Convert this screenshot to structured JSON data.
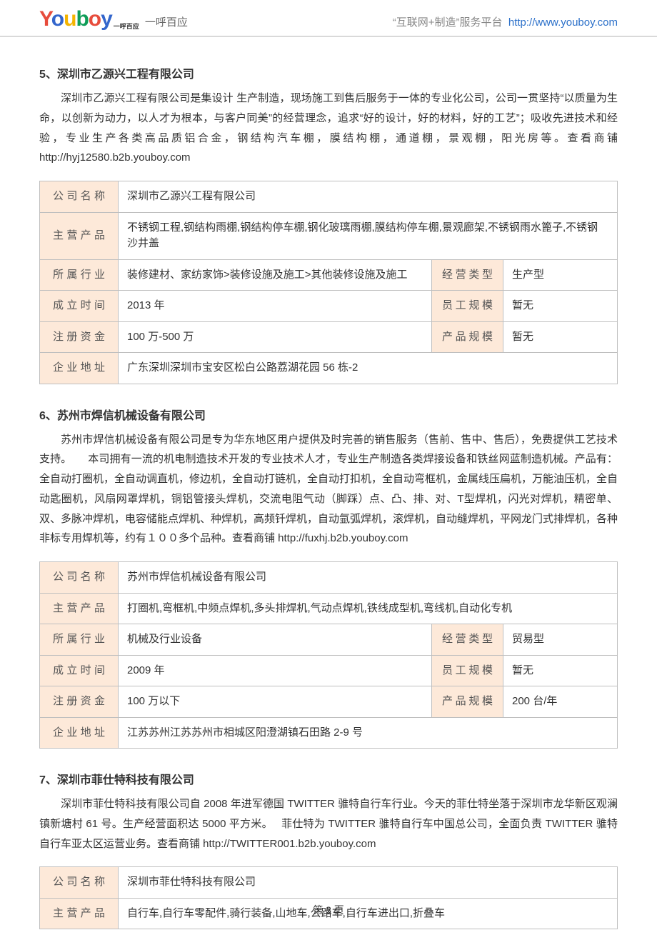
{
  "header": {
    "logo_sup": "一呼百应",
    "logo_sub": "一呼百应",
    "tagline": "“互联网+制造”服务平台",
    "url": "http://www.youboy.com"
  },
  "sections": [
    {
      "title": "5、深圳市乙源兴工程有限公司",
      "desc": "深圳市乙源兴工程有限公司是集设计 生产制造，现场施工到售后服务于一体的专业化公司，公司一贯坚持“以质量为生命，以创新为动力，以人才为根本，与客户同美”的经营理念，追求“好的设计，好的材料，好的工艺”；吸收先进技术和经验，专业生产各类高品质铝合金，钢结构汽车棚，膜结构棚，通道棚，景观棚，阳光房等。查看商铺  http://hyj12580.b2b.youboy.com",
      "table": {
        "company_name": "深圳市乙源兴工程有限公司",
        "main_products": "不锈钢工程,钢结构雨棚,钢结构停车棚,钢化玻璃雨棚,膜结构停车棚,景观廊架,不锈钢雨水篦子,不锈钢沙井盖",
        "industry": "装修建材、家纺家饰>装修设施及施工>其他装修设施及施工",
        "biz_type": "生产型",
        "founded": "2013 年",
        "staff": "暂无",
        "capital": "100 万-500 万",
        "product_scale": "暂无",
        "address": "广东深圳深圳市宝安区松白公路荔湖花园 56 栋-2"
      }
    },
    {
      "title": "6、苏州市焊信机械设备有限公司",
      "desc": "苏州市焊信机械设备有限公司是专为华东地区用户提供及时完善的销售服务（售前、售中、售后），免费提供工艺技术支持。　　本司拥有一流的机电制造技术开发的专业技术人才，专业生产制造各类焊接设备和铁丝网蓝制造机械。产品有：全自动打圈机，全自动调直机，修边机，全自动打链机，全自动打扣机，全自动弯框机，金属线压扁机，万能油压机，全自动匙圈机，风扇网罩焊机，铜铝管接头焊机，交流电阻气动（脚踩）点、凸、排、对、T型焊机，闪光对焊机，精密单、双、多脉冲焊机，电容储能点焊机、种焊机，高频钎焊机，自动氩弧焊机，滚焊机，自动缝焊机，平网龙门式排焊机，各种非标专用焊机等，约有１００多个品种。查看商铺  http://fuxhj.b2b.youboy.com",
      "table": {
        "company_name": "苏州市焊信机械设备有限公司",
        "main_products": "打圈机,弯框机,中频点焊机,多头排焊机,气动点焊机,铁线成型机,弯线机,自动化专机",
        "industry": "机械及行业设备",
        "biz_type": "贸易型",
        "founded": "2009 年",
        "staff": "暂无",
        "capital": "100 万以下",
        "product_scale": "200 台/年",
        "address": "江苏苏州江苏苏州市相城区阳澄湖镇石田路 2-9 号"
      }
    },
    {
      "title": "7、深圳市菲仕特科技有限公司",
      "desc": "深圳市菲仕特科技有限公司自 2008 年进军德国 TWITTER 骓特自行车行业。今天的菲仕特坐落于深圳市龙华新区观澜镇新塘村 61 号。生产经营面积达 5000 平方米。　 菲仕特为 TWITTER 骓特自行车中国总公司，全面负责 TWITTER 骓特自行车亚太区运营业务。查看商铺  http://TWITTER001.b2b.youboy.com",
      "table": {
        "company_name": "深圳市菲仕特科技有限公司",
        "main_products": "自行车,自行车零配件,骑行装备,山地车,公路车,自行车进出口,折叠车"
      }
    }
  ],
  "labels": {
    "company_name": "公司名称",
    "main_products": "主营产品",
    "industry": "所属行业",
    "biz_type": "经营类型",
    "founded": "成立时间",
    "staff": "员工规模",
    "capital": "注册资金",
    "product_scale": "产品规模",
    "address": "企业地址"
  },
  "footer": {
    "page": "第 3 页"
  }
}
